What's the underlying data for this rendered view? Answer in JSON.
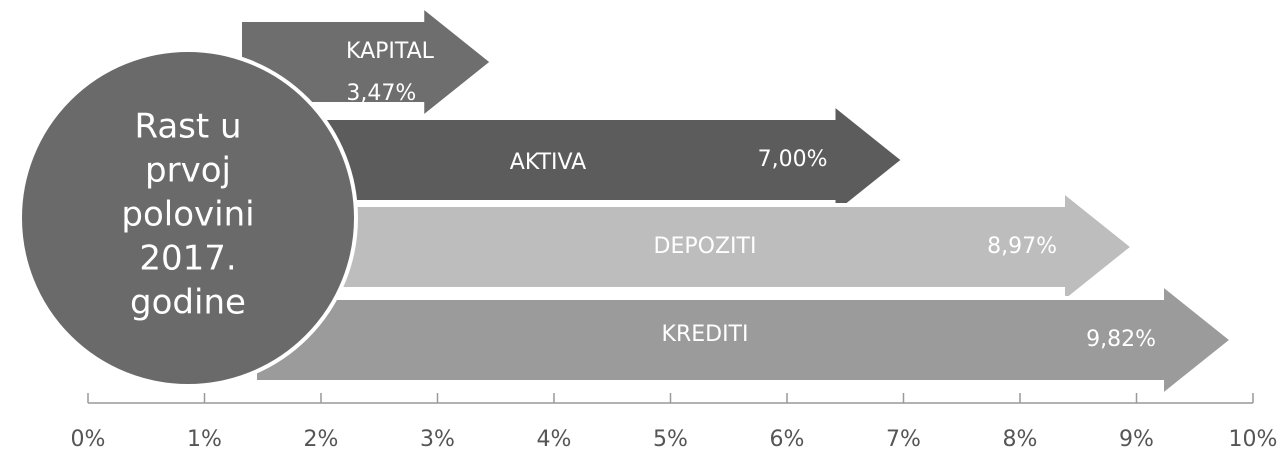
{
  "chart_data": {
    "type": "arrow-bar",
    "annotation": [
      "Rast u",
      "prvoj",
      "polovini",
      "2017.",
      "godine"
    ],
    "categories": [
      "KAPITAL",
      "AKTIVA",
      "DEPOZITI",
      "KREDITI"
    ],
    "values": [
      3.47,
      7.0,
      8.97,
      9.82
    ],
    "value_labels": [
      "3,47%",
      "7,00%",
      "8,97%",
      "9,82%"
    ],
    "colors": [
      "#6e6e6e",
      "#5c5c5c",
      "#bdbdbd",
      "#9b9b9b"
    ],
    "circle_color": "#6a6a6a",
    "xlim": [
      0,
      10
    ],
    "xticks": [
      {
        "value": 0,
        "label": "0%"
      },
      {
        "value": 1,
        "label": "1%"
      },
      {
        "value": 2,
        "label": "2%"
      },
      {
        "value": 3,
        "label": "3%"
      },
      {
        "value": 4,
        "label": "4%"
      },
      {
        "value": 5,
        "label": "5%"
      },
      {
        "value": 6,
        "label": "6%"
      },
      {
        "value": 7,
        "label": "7%"
      },
      {
        "value": 8,
        "label": "8%"
      },
      {
        "value": 9,
        "label": "9%"
      },
      {
        "value": 10,
        "label": "10%"
      }
    ]
  }
}
